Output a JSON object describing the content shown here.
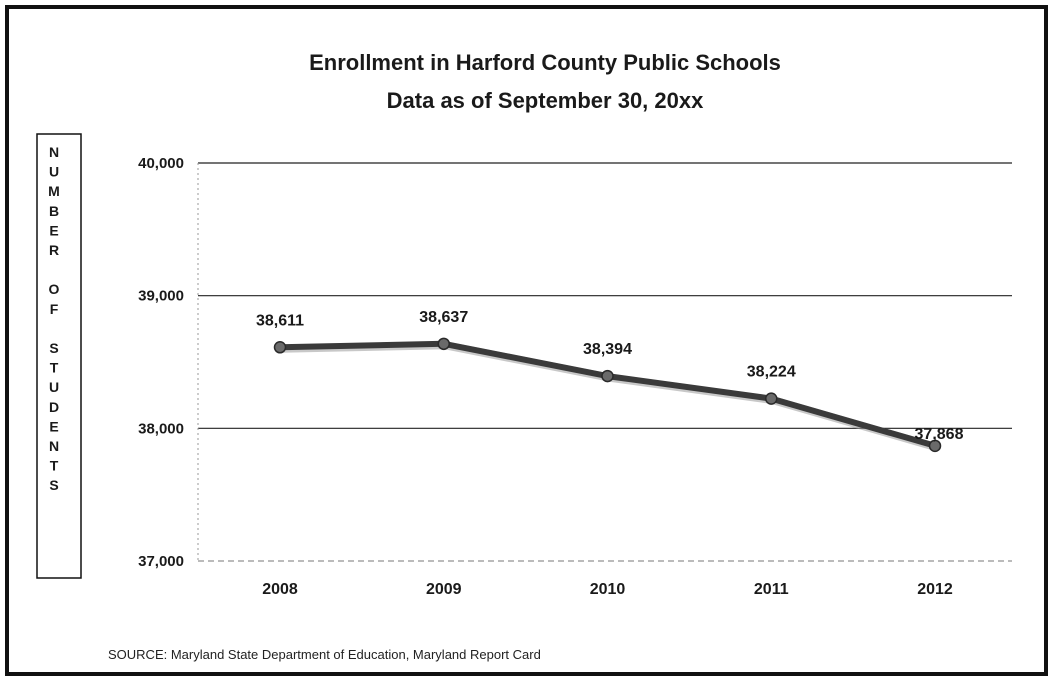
{
  "chart_data": {
    "type": "line",
    "title": "Enrollment in Harford County Public Schools",
    "subtitle": "Data as of September 30, 20xx",
    "xlabel": "",
    "ylabel": "NUMBER OF STUDENTS",
    "categories": [
      "2008",
      "2009",
      "2010",
      "2011",
      "2012"
    ],
    "series": [
      {
        "values": [
          38611,
          38637,
          38394,
          38224,
          37868
        ],
        "color": "#3a3a3a"
      }
    ],
    "data_labels": [
      "38,611",
      "38,637",
      "38,394",
      "38,224",
      "37,868"
    ],
    "ylim": [
      37000,
      40000
    ],
    "yticks": [
      37000,
      38000,
      39000,
      40000
    ],
    "ytick_labels": [
      "37,000",
      "38,000",
      "39,000",
      "40,000"
    ],
    "grid": true,
    "legend": "none",
    "source": "SOURCE:  Maryland State Department of Education, Maryland Report Card"
  }
}
